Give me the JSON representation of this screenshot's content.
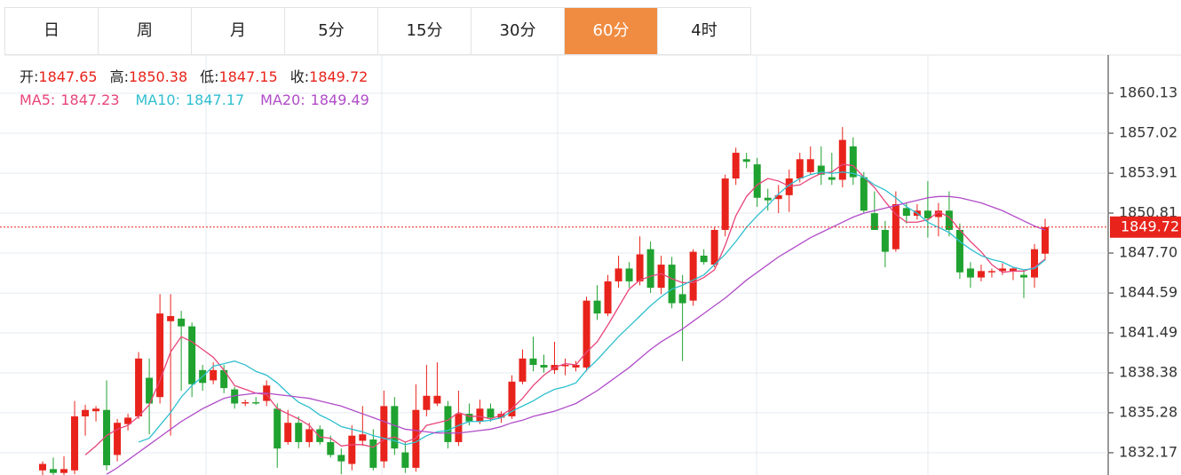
{
  "tabs": [
    "日",
    "周",
    "月",
    "5分",
    "15分",
    "30分",
    "60分",
    "4时"
  ],
  "active_tab": 6,
  "chart_data": {
    "type": "candlestick",
    "info": [
      {
        "label": "开:",
        "value": 1847.65
      },
      {
        "label": "高:",
        "value": 1850.38
      },
      {
        "label": "低:",
        "value": 1847.15
      },
      {
        "label": "收:",
        "value": 1849.72
      }
    ],
    "up_color": "#e8231b",
    "down_color": "#1fa22f",
    "last_price": 1849.72,
    "ylim": [
      1830.44,
      1863.1
    ],
    "yticks": [
      1860.13,
      1857.02,
      1853.91,
      {
        "value": 1850.81,
        "label": "1850.81"
      },
      {
        "value": 1847.7,
        "label": "1847.70"
      },
      1844.59,
      1841.49,
      1838.38,
      1835.28,
      1832.17
    ],
    "grid": true,
    "candles": [
      [
        1830.8,
        1831.5,
        1830.3,
        1831.3
      ],
      [
        1830.9,
        1831.8,
        1830.2,
        1830.6
      ],
      [
        1830.6,
        1831.9,
        1830.2,
        1830.9
      ],
      [
        1830.8,
        1836.2,
        1830.5,
        1835.0
      ],
      [
        1835.0,
        1835.9,
        1833.5,
        1835.5
      ],
      [
        1835.4,
        1835.8,
        1834.6,
        1835.6
      ],
      [
        1835.5,
        1837.8,
        1830.8,
        1831.2
      ],
      [
        1832.0,
        1834.8,
        1831.5,
        1834.5
      ],
      [
        1834.4,
        1835.2,
        1833.9,
        1834.9
      ],
      [
        1835.0,
        1840.0,
        1834.8,
        1839.5
      ],
      [
        1838.0,
        1839.5,
        1833.6,
        1836.0
      ],
      [
        1836.5,
        1844.5,
        1836.0,
        1843.0
      ],
      [
        1842.4,
        1844.5,
        1833.5,
        1842.8
      ],
      [
        1842.6,
        1843.2,
        1837.0,
        1842.0
      ],
      [
        1842.0,
        1842.3,
        1836.5,
        1837.5
      ],
      [
        1838.6,
        1839.0,
        1837.0,
        1837.6
      ],
      [
        1837.8,
        1839.2,
        1837.5,
        1838.6
      ],
      [
        1838.6,
        1839.0,
        1836.8,
        1837.2
      ],
      [
        1837.1,
        1837.3,
        1835.6,
        1836.0
      ],
      [
        1836.0,
        1836.3,
        1835.8,
        1836.1
      ],
      [
        1836.1,
        1836.5,
        1835.9,
        1836.0
      ],
      [
        1836.2,
        1837.8,
        1835.8,
        1837.4
      ],
      [
        1835.6,
        1836.0,
        1831.0,
        1832.5
      ],
      [
        1833.0,
        1835.5,
        1832.8,
        1834.5
      ],
      [
        1834.5,
        1835.0,
        1832.5,
        1833.0
      ],
      [
        1833.0,
        1834.5,
        1832.6,
        1834.0
      ],
      [
        1834.0,
        1834.3,
        1832.8,
        1833.0
      ],
      [
        1833.0,
        1833.5,
        1831.8,
        1832.0
      ],
      [
        1832.0,
        1832.5,
        1830.5,
        1831.5
      ],
      [
        1831.3,
        1834.3,
        1830.8,
        1833.5
      ],
      [
        1833.1,
        1835.8,
        1832.7,
        1833.6
      ],
      [
        1833.2,
        1834.0,
        1830.8,
        1831.0
      ],
      [
        1831.5,
        1837.0,
        1831.0,
        1835.8
      ],
      [
        1835.8,
        1836.5,
        1832.0,
        1832.5
      ],
      [
        1832.2,
        1833.0,
        1830.6,
        1831.0
      ],
      [
        1831.0,
        1837.5,
        1830.7,
        1835.5
      ],
      [
        1835.5,
        1839.0,
        1835.0,
        1836.6
      ],
      [
        1836.0,
        1839.2,
        1835.8,
        1836.6
      ],
      [
        1835.8,
        1836.2,
        1832.5,
        1833.0
      ],
      [
        1833.0,
        1837.0,
        1832.7,
        1835.2
      ],
      [
        1835.2,
        1836.0,
        1834.3,
        1834.6
      ],
      [
        1834.6,
        1836.3,
        1834.4,
        1835.6
      ],
      [
        1835.6,
        1836.0,
        1834.6,
        1834.9
      ],
      [
        1834.9,
        1835.4,
        1834.5,
        1835.2
      ],
      [
        1835.0,
        1838.2,
        1834.8,
        1837.7
      ],
      [
        1837.7,
        1840.2,
        1837.5,
        1839.5
      ],
      [
        1839.5,
        1841.2,
        1838.5,
        1839.0
      ],
      [
        1839.0,
        1839.8,
        1838.4,
        1838.8
      ],
      [
        1838.6,
        1840.8,
        1838.3,
        1839.0
      ],
      [
        1838.9,
        1839.5,
        1838.2,
        1839.0
      ],
      [
        1838.8,
        1839.3,
        1838.5,
        1839.0
      ],
      [
        1838.8,
        1844.3,
        1838.5,
        1844.0
      ],
      [
        1844.0,
        1845.2,
        1842.5,
        1843.0
      ],
      [
        1843.0,
        1846.0,
        1842.8,
        1845.5
      ],
      [
        1845.5,
        1847.5,
        1845.0,
        1846.5
      ],
      [
        1846.5,
        1847.0,
        1845.0,
        1845.5
      ],
      [
        1845.5,
        1849.0,
        1845.2,
        1847.6
      ],
      [
        1848.0,
        1848.6,
        1844.6,
        1845.0
      ],
      [
        1845.0,
        1847.5,
        1844.5,
        1846.8
      ],
      [
        1846.8,
        1847.4,
        1843.4,
        1843.8
      ],
      [
        1844.5,
        1846.0,
        1839.3,
        1843.8
      ],
      [
        1844.0,
        1848.0,
        1843.6,
        1847.8
      ],
      [
        1847.5,
        1848.0,
        1846.8,
        1847.0
      ],
      [
        1846.8,
        1849.7,
        1846.6,
        1849.5
      ],
      [
        1849.5,
        1853.8,
        1849.0,
        1853.5
      ],
      [
        1853.5,
        1855.9,
        1853.0,
        1855.5
      ],
      [
        1855.0,
        1855.5,
        1854.3,
        1854.8
      ],
      [
        1854.6,
        1855.1,
        1851.3,
        1852.0
      ],
      [
        1852.0,
        1852.7,
        1851.0,
        1851.8
      ],
      [
        1851.9,
        1853.0,
        1850.8,
        1852.2
      ],
      [
        1852.2,
        1854.2,
        1850.9,
        1853.5
      ],
      [
        1853.5,
        1855.5,
        1853.2,
        1855.0
      ],
      [
        1854.0,
        1856.0,
        1853.8,
        1855.0
      ],
      [
        1854.5,
        1856.0,
        1853.0,
        1853.8
      ],
      [
        1853.6,
        1855.5,
        1853.0,
        1853.4
      ],
      [
        1853.4,
        1857.5,
        1852.8,
        1856.5
      ],
      [
        1856.0,
        1856.7,
        1853.0,
        1853.6
      ],
      [
        1853.6,
        1854.0,
        1850.8,
        1851.0
      ],
      [
        1850.8,
        1852.5,
        1849.5,
        1849.5
      ],
      [
        1849.5,
        1850.2,
        1846.6,
        1847.8
      ],
      [
        1848.0,
        1852.5,
        1847.8,
        1851.5
      ],
      [
        1851.2,
        1851.6,
        1850.0,
        1850.6
      ],
      [
        1850.6,
        1851.5,
        1850.3,
        1851.0
      ],
      [
        1851.0,
        1853.3,
        1848.9,
        1850.4
      ],
      [
        1850.5,
        1851.6,
        1849.0,
        1851.0
      ],
      [
        1851.0,
        1852.5,
        1849.0,
        1849.5
      ],
      [
        1849.5,
        1850.0,
        1845.7,
        1846.2
      ],
      [
        1846.5,
        1847.0,
        1845.0,
        1845.8
      ],
      [
        1845.8,
        1846.8,
        1845.5,
        1846.3
      ],
      [
        1846.2,
        1846.5,
        1845.8,
        1846.3
      ],
      [
        1846.3,
        1846.9,
        1846.0,
        1846.5
      ],
      [
        1846.3,
        1846.6,
        1845.6,
        1846.5
      ],
      [
        1846.0,
        1846.3,
        1844.2,
        1845.8
      ],
      [
        1845.8,
        1848.4,
        1845.0,
        1848.0
      ],
      [
        1847.65,
        1850.38,
        1847.15,
        1849.72
      ]
    ],
    "series": [
      {
        "name": "MA5:",
        "last": 1847.23,
        "color": "#e8457a",
        "values": [
          null,
          null,
          null,
          null,
          1832.0,
          1832.7,
          1833.5,
          1834.0,
          1834.3,
          1835.0,
          1835.9,
          1837.8,
          1840.0,
          1841.2,
          1840.8,
          1840.2,
          1839.6,
          1838.6,
          1837.4,
          1837.1,
          1836.8,
          1836.7,
          1835.6,
          1835.2,
          1834.8,
          1834.3,
          1833.4,
          1833.3,
          1832.7,
          1832.8,
          1832.8,
          1832.6,
          1833.2,
          1833.4,
          1833.0,
          1833.3,
          1834.3,
          1834.5,
          1834.7,
          1835.3,
          1835.0,
          1835.0,
          1834.8,
          1835.1,
          1835.6,
          1836.4,
          1837.4,
          1838.2,
          1838.8,
          1839.1,
          1839.0,
          1840.0,
          1840.8,
          1842.1,
          1843.5,
          1844.9,
          1845.6,
          1845.9,
          1846.1,
          1845.7,
          1845.4,
          1845.4,
          1845.8,
          1846.4,
          1848.3,
          1850.6,
          1852.1,
          1853.0,
          1853.5,
          1853.3,
          1852.9,
          1853.0,
          1853.5,
          1853.9,
          1854.0,
          1854.6,
          1854.5,
          1853.6,
          1852.8,
          1851.7,
          1850.7,
          1850.1,
          1850.1,
          1850.3,
          1850.9,
          1850.5,
          1849.5,
          1848.6,
          1847.8,
          1846.8,
          1846.2,
          1846.3,
          1846.3,
          1846.6,
          1847.23
        ]
      },
      {
        "name": "MA10:",
        "last": 1847.17,
        "color": "#2fbfcf",
        "values": [
          null,
          null,
          null,
          null,
          null,
          null,
          null,
          null,
          null,
          1833.0,
          1833.3,
          1834.3,
          1835.3,
          1836.5,
          1837.4,
          1838.1,
          1838.9,
          1839.1,
          1839.3,
          1839.0,
          1838.5,
          1838.2,
          1837.6,
          1836.8,
          1836.1,
          1835.7,
          1835.1,
          1834.7,
          1834.2,
          1834.0,
          1833.8,
          1833.5,
          1833.3,
          1833.1,
          1832.8,
          1833.0,
          1833.5,
          1833.8,
          1833.9,
          1834.3,
          1834.6,
          1834.6,
          1834.7,
          1834.9,
          1835.4,
          1835.8,
          1836.2,
          1836.7,
          1837.1,
          1837.3,
          1837.6,
          1838.6,
          1839.4,
          1840.3,
          1841.2,
          1842.0,
          1842.8,
          1843.6,
          1844.3,
          1844.9,
          1845.2,
          1845.6,
          1846.0,
          1846.8,
          1847.6,
          1848.6,
          1849.7,
          1850.6,
          1851.4,
          1852.3,
          1853.0,
          1853.5,
          1853.8,
          1854.0,
          1853.9,
          1854.0,
          1853.9,
          1853.6,
          1853.0,
          1852.6,
          1852.0,
          1851.3,
          1850.8,
          1850.1,
          1849.7,
          1849.3,
          1848.6,
          1848.0,
          1847.5,
          1847.2,
          1847.0,
          1846.6,
          1846.4,
          1846.5,
          1847.17
        ]
      },
      {
        "name": "MA20:",
        "last": 1849.49,
        "color": "#b04cc8",
        "values": [
          null,
          null,
          null,
          null,
          null,
          null,
          1830.5,
          1831.0,
          1831.6,
          1832.2,
          1832.8,
          1833.4,
          1834.0,
          1834.6,
          1835.1,
          1835.6,
          1836.0,
          1836.4,
          1836.6,
          1836.7,
          1836.8,
          1836.8,
          1836.7,
          1836.6,
          1836.5,
          1836.4,
          1836.2,
          1836.0,
          1835.8,
          1835.5,
          1835.2,
          1834.9,
          1834.6,
          1834.3,
          1834.0,
          1833.9,
          1833.8,
          1833.7,
          1833.7,
          1833.7,
          1833.8,
          1833.9,
          1834.0,
          1834.2,
          1834.5,
          1834.7,
          1835.0,
          1835.2,
          1835.4,
          1835.7,
          1836.0,
          1836.5,
          1837.0,
          1837.6,
          1838.2,
          1838.8,
          1839.5,
          1840.2,
          1840.8,
          1841.3,
          1841.8,
          1842.4,
          1843.0,
          1843.6,
          1844.2,
          1844.9,
          1845.6,
          1846.2,
          1846.8,
          1847.4,
          1847.9,
          1848.4,
          1848.9,
          1849.3,
          1849.7,
          1850.1,
          1850.5,
          1850.8,
          1851.0,
          1851.2,
          1851.4,
          1851.6,
          1851.8,
          1852.0,
          1852.1,
          1852.1,
          1852.0,
          1851.8,
          1851.6,
          1851.3,
          1851.0,
          1850.6,
          1850.2,
          1849.8,
          1849.49
        ]
      }
    ]
  }
}
